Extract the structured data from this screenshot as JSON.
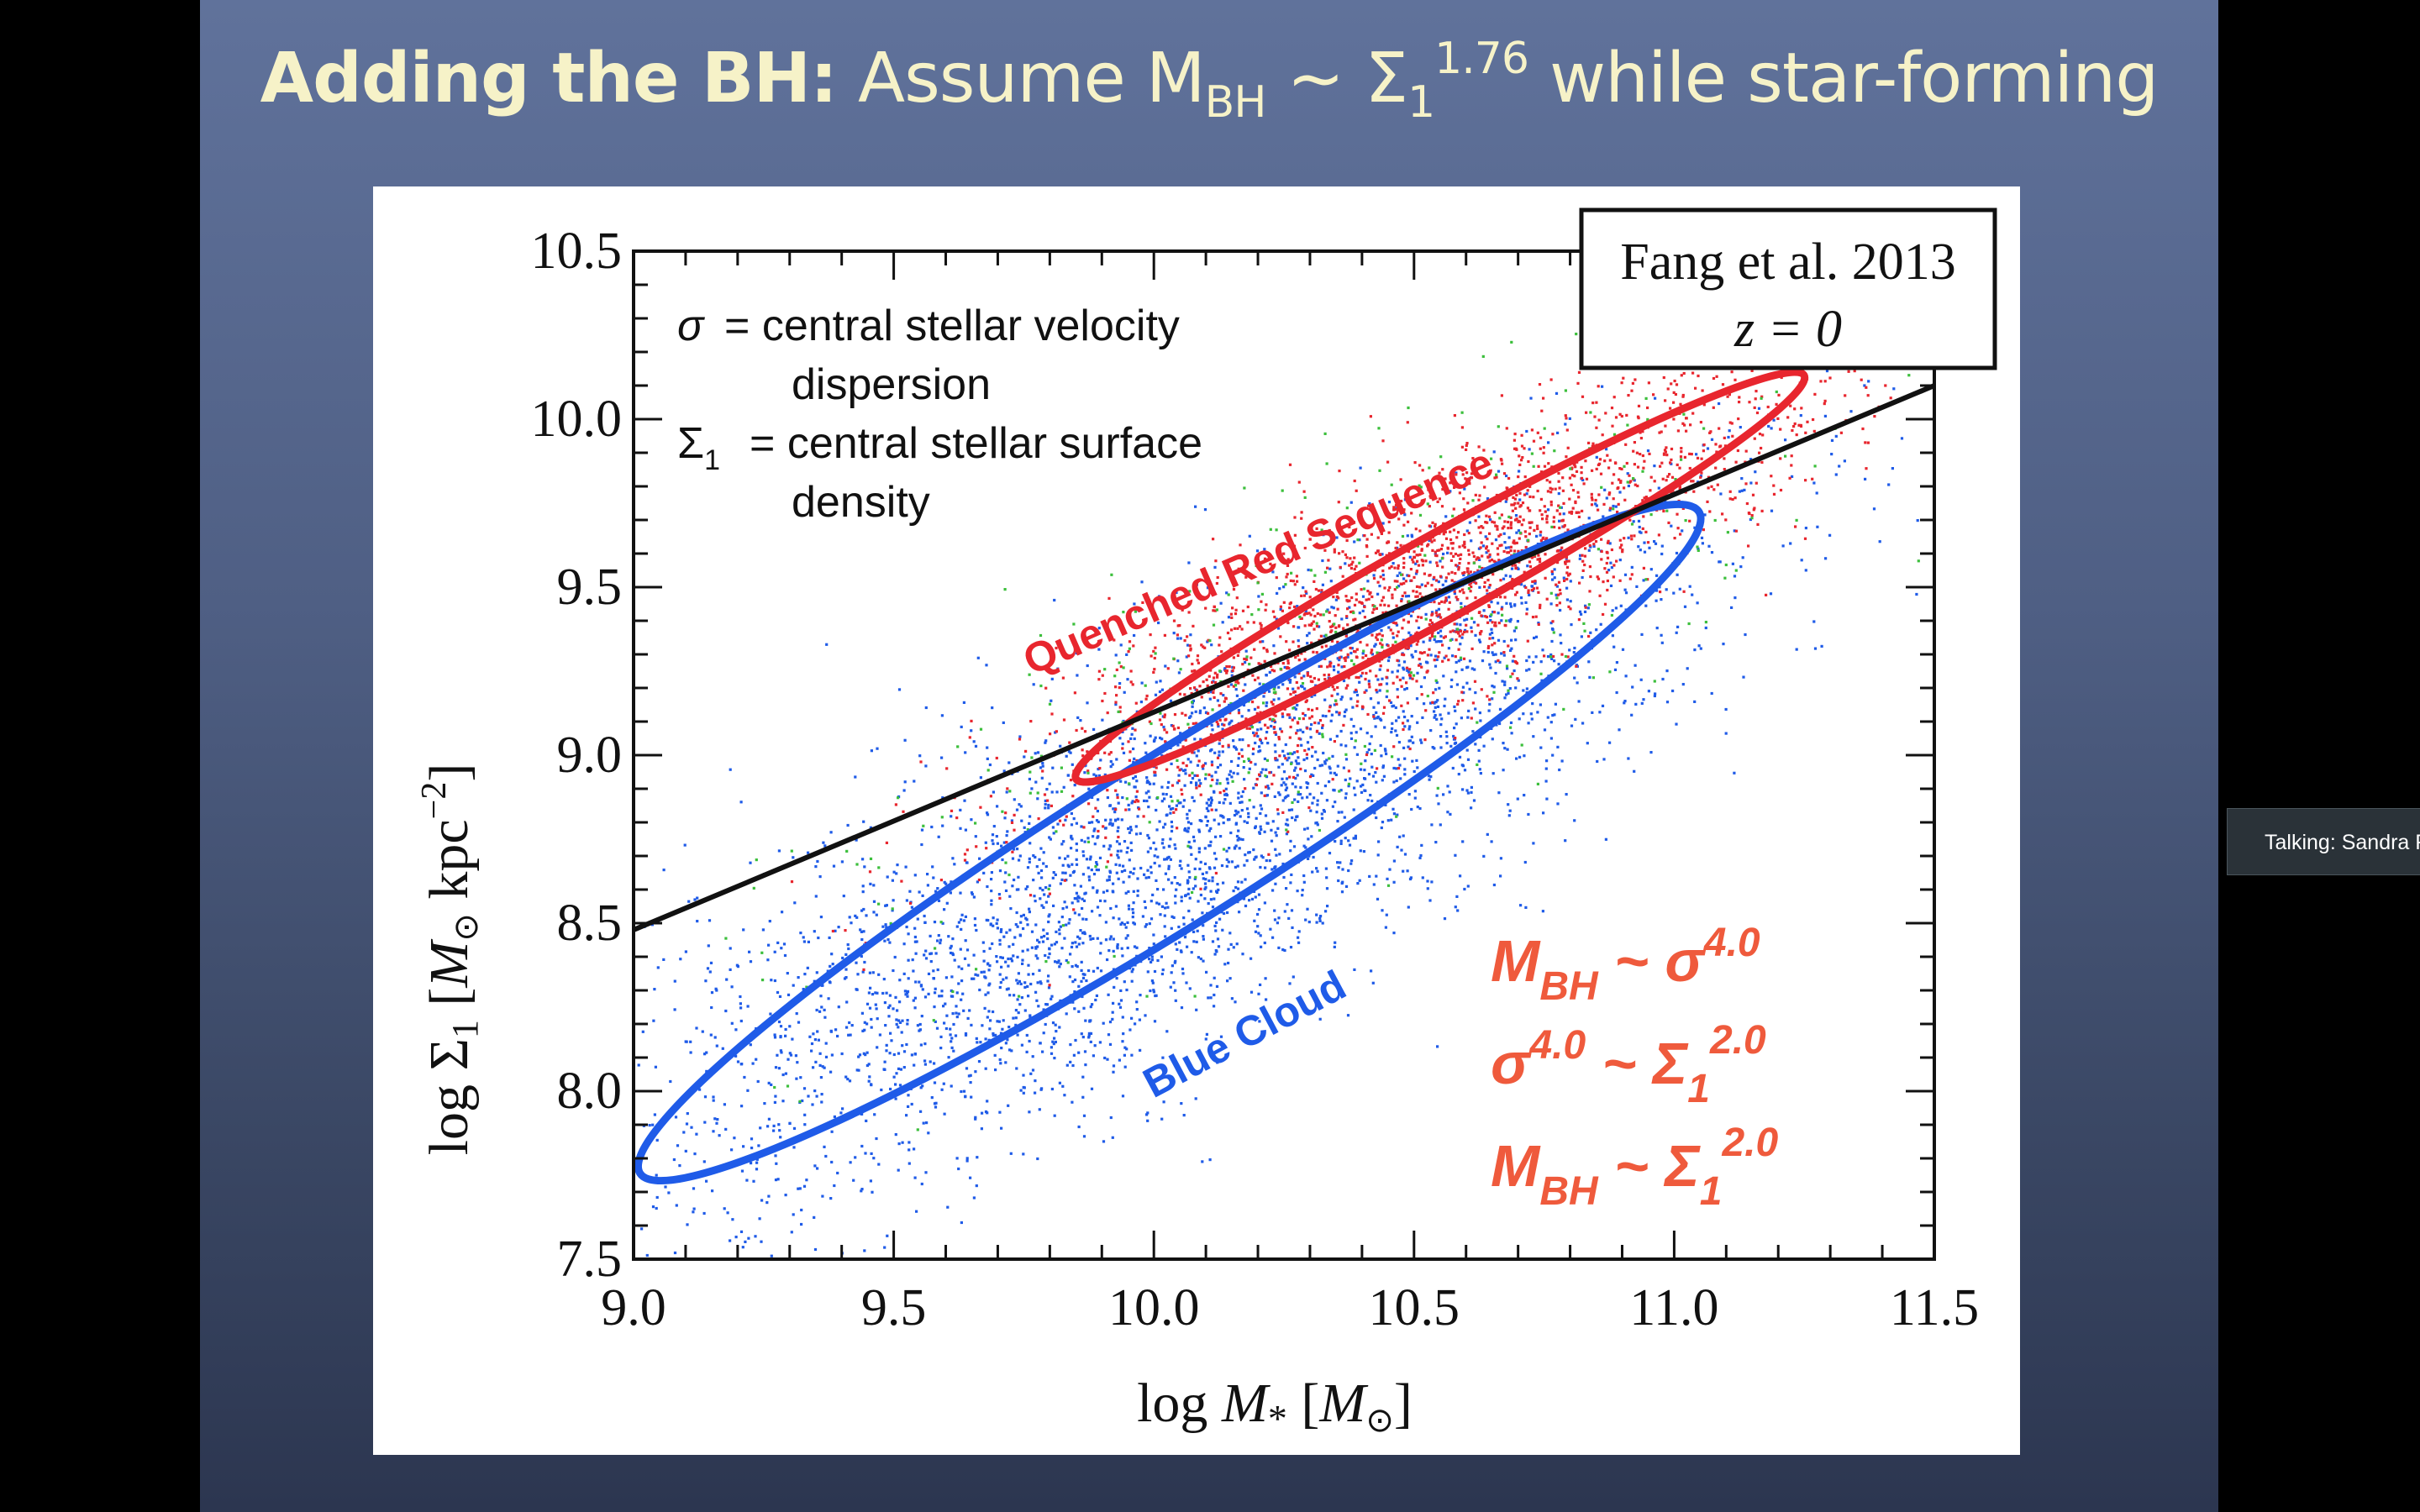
{
  "slide": {
    "title_bold": "Adding the BH:",
    "title_main": " Assume M",
    "title_sub": "BH",
    "title_mid": " ~ Σ",
    "title_sub2": "1",
    "title_sup": "1.76",
    "title_end": " while star-forming"
  },
  "figure": {
    "reference_line1": "Fang et al. 2013",
    "reference_line2": "z = 0",
    "note_sigma_symbol": "σ",
    "note_sigma_text1": "= central stellar velocity",
    "note_sigma_text2": "dispersion",
    "note_Sigma_symbol": "Σ",
    "note_Sigma_sub": "1",
    "note_Sigma_text1": "= central stellar surface",
    "note_Sigma_text2": "density",
    "red_label": "Quenched Red Sequence",
    "blue_label": "Blue Cloud",
    "scaling1_a": "M",
    "scaling1_sub": "BH",
    "scaling1_b": " ~ σ",
    "scaling1_sup": "4.0",
    "scaling2_a": "σ",
    "scaling2_sup1": "4.0",
    "scaling2_b": " ~ Σ",
    "scaling2_sub": "1",
    "scaling2_sup2": "2.0",
    "scaling3_a": "M",
    "scaling3_sub": "BH",
    "scaling3_b": " ~ Σ",
    "scaling3_sub2": "1",
    "scaling3_sup": "2.0",
    "colors": {
      "red": "#e8262e",
      "blue": "#1f5be8",
      "green": "#3cbf3c",
      "fit": "#111111",
      "scaling": "#ef5a3c"
    }
  },
  "chart_data": {
    "type": "scatter",
    "xlabel": "log M* [M⊙]",
    "ylabel": "log Σ1 [M⊙ kpc⁻²]",
    "xlim": [
      9.0,
      11.5
    ],
    "ylim": [
      7.5,
      10.5
    ],
    "xticks": [
      "9.0",
      "9.5",
      "10.0",
      "10.5",
      "11.0",
      "11.5"
    ],
    "yticks": [
      "7.5",
      "8.0",
      "8.5",
      "9.0",
      "9.5",
      "10.0",
      "10.5"
    ],
    "fit_line": {
      "x": [
        9.0,
        11.5
      ],
      "y": [
        8.48,
        10.1
      ]
    },
    "series": [
      {
        "name": "Blue Cloud",
        "color": "#1f5be8",
        "ellipse": {
          "center_x": 10.03,
          "center_y": 8.74,
          "semi_major_dex": 1.2,
          "semi_minor_dex": 0.16,
          "tilt_deg": 32
        },
        "approx_count": 3800
      },
      {
        "name": "Quenched Red Sequence",
        "color": "#e8262e",
        "ellipse": {
          "center_x": 10.55,
          "center_y": 9.53,
          "semi_major_dex": 0.8,
          "semi_minor_dex": 0.08,
          "tilt_deg": 29
        },
        "approx_count": 2200
      },
      {
        "color": "#3cbf3c",
        "approx_count": 350
      }
    ]
  },
  "overlay": {
    "talking_label": "Talking: Sandra F"
  }
}
